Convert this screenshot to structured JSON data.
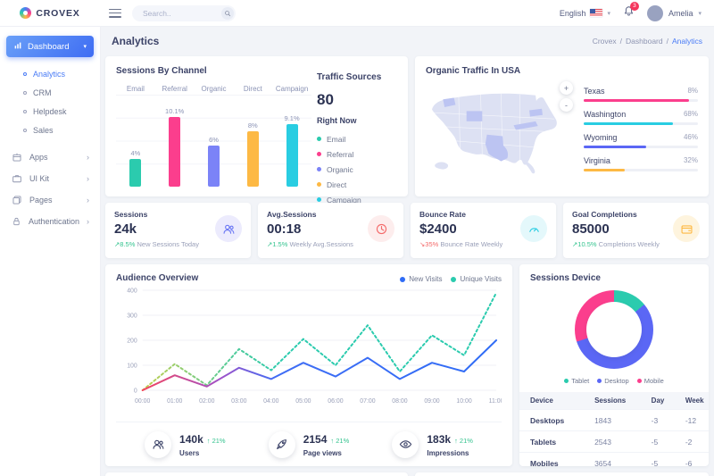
{
  "header": {
    "brand": "CROVEX",
    "search_placeholder": "Search..",
    "language": "English",
    "notification_count": "3",
    "user_name": "Amelia"
  },
  "sidebar": {
    "dashboard_label": "Dashboard",
    "dashboard_children": [
      {
        "label": "Analytics",
        "active": true
      },
      {
        "label": "CRM",
        "active": false
      },
      {
        "label": "Helpdesk",
        "active": false
      },
      {
        "label": "Sales",
        "active": false
      }
    ],
    "items": [
      {
        "label": "Apps",
        "icon": "box-icon"
      },
      {
        "label": "UI Kit",
        "icon": "briefcase-icon"
      },
      {
        "label": "Pages",
        "icon": "layers-icon"
      },
      {
        "label": "Authentication",
        "icon": "lock-icon"
      }
    ]
  },
  "page": {
    "title": "Analytics",
    "breadcrumb": [
      "Crovex",
      "Dashboard",
      "Analytics"
    ]
  },
  "sessions_by_channel": {
    "title": "Sessions By Channel",
    "type": "bar",
    "categories": [
      "Email",
      "Referral",
      "Organic",
      "Direct",
      "Campaign"
    ],
    "value_labels": [
      "4%",
      "10.1%",
      "6%",
      "8%",
      "9.1%"
    ],
    "values": [
      4,
      10.1,
      6,
      8,
      9.1
    ],
    "colors": [
      "#2bcbae",
      "#fb3e8d",
      "#7b83f7",
      "#fdb944",
      "#29cde2"
    ]
  },
  "traffic_sources": {
    "title": "Traffic Sources",
    "value": "80",
    "subtitle": "Right Now",
    "legend": [
      {
        "label": "Email",
        "color": "#2bcbae"
      },
      {
        "label": "Referral",
        "color": "#fb3e8d"
      },
      {
        "label": "Organic",
        "color": "#7b83f7"
      },
      {
        "label": "Direct",
        "color": "#fdb944"
      },
      {
        "label": "Campaign",
        "color": "#29cde2"
      }
    ]
  },
  "organic_traffic": {
    "title": "Organic Traffic In USA",
    "zoom_in_label": "+",
    "zoom_out_label": "-",
    "regions": [
      {
        "name": "Texas",
        "value": "8%",
        "bar_pct": 92,
        "color": "#fb3e8d"
      },
      {
        "name": "Washington",
        "value": "68%",
        "bar_pct": 78,
        "color": "#29cde2"
      },
      {
        "name": "Wyoming",
        "value": "46%",
        "bar_pct": 55,
        "color": "#5b67f5"
      },
      {
        "name": "Virginia",
        "value": "32%",
        "bar_pct": 36,
        "color": "#fdb944"
      }
    ]
  },
  "stat_cards": [
    {
      "label": "Sessions",
      "value": "24k",
      "arrow": "↗",
      "delta": "8.5%",
      "dir": "up",
      "desc": "New Sessions Today",
      "icon": "users-icon",
      "icon_color": "#6a77f4",
      "icon_bg": "#ecebfd"
    },
    {
      "label": "Avg.Sessions",
      "value": "00:18",
      "arrow": "↗",
      "delta": "1.5%",
      "dir": "up",
      "desc": "Weekly Avg.Sessions",
      "icon": "clock-icon",
      "icon_color": "#f46a6a",
      "icon_bg": "#fdeded"
    },
    {
      "label": "Bounce Rate",
      "value": "$2400",
      "arrow": "↘",
      "delta": "35%",
      "dir": "down",
      "desc": "Bounce Rate Weekly",
      "icon": "gauge-icon",
      "icon_color": "#29cde2",
      "icon_bg": "#e4f8fb"
    },
    {
      "label": "Goal Completions",
      "value": "85000",
      "arrow": "↗",
      "delta": "10.5%",
      "dir": "up",
      "desc": "Completions Weekly",
      "icon": "wallet-icon",
      "icon_color": "#fdb944",
      "icon_bg": "#fef4de"
    }
  ],
  "audience_overview": {
    "title": "Audience Overview",
    "type": "line",
    "x": [
      "00:00",
      "01:00",
      "02:00",
      "03:00",
      "04:00",
      "05:00",
      "06:00",
      "07:00",
      "08:00",
      "09:00",
      "10:00",
      "11:00"
    ],
    "y_ticks": [
      400,
      300,
      200,
      100,
      0
    ],
    "ylim": [
      0,
      400
    ],
    "series": [
      {
        "name": "New Visits",
        "color": "#2f6cf6",
        "style": "solid",
        "values": [
          0,
          60,
          15,
          90,
          45,
          110,
          55,
          130,
          45,
          110,
          75,
          200
        ]
      },
      {
        "name": "Unique Visits",
        "color": "#2bcbae",
        "style": "dotted",
        "values": [
          0,
          105,
          20,
          165,
          80,
          205,
          100,
          260,
          75,
          220,
          140,
          390
        ]
      }
    ]
  },
  "quick_stats": [
    {
      "icon": "users-icon",
      "value": "140k",
      "delta": "↑ 21%",
      "label": "Users"
    },
    {
      "icon": "rocket-icon",
      "value": "2154",
      "delta": "↑ 21%",
      "label": "Page views"
    },
    {
      "icon": "eye-icon",
      "value": "183k",
      "delta": "↑ 21%",
      "label": "Impressions"
    }
  ],
  "sessions_device": {
    "title": "Sessions Device",
    "type": "pie",
    "donut": [
      {
        "label": "Tablet",
        "color": "#2bcbae",
        "pct": 14
      },
      {
        "label": "Desktop",
        "color": "#5b67f5",
        "pct": 56
      },
      {
        "label": "Mobile",
        "color": "#fb3e8d",
        "pct": 30
      }
    ],
    "table": {
      "headers": [
        "Device",
        "Sessions",
        "Day",
        "Week"
      ],
      "rows": [
        [
          "Desktops",
          "1843",
          "-3",
          "-12"
        ],
        [
          "Tablets",
          "2543",
          "-5",
          "-2"
        ],
        [
          "Mobiles",
          "3654",
          "-5",
          "-6"
        ]
      ]
    }
  }
}
